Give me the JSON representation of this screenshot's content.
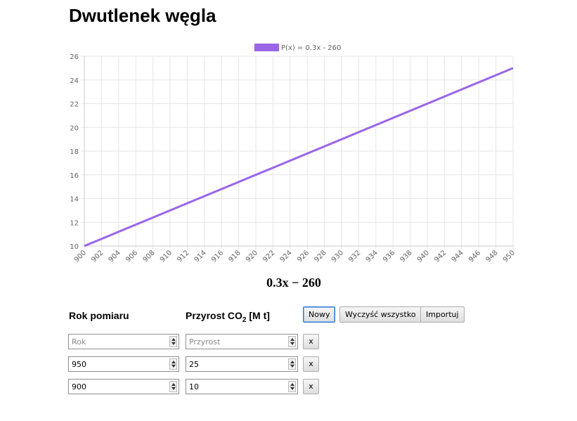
{
  "page": {
    "title": "Dwutlenek węgla"
  },
  "chart_data": {
    "type": "line",
    "legend": "top",
    "grid": true,
    "x": [
      900,
      902,
      904,
      906,
      908,
      910,
      912,
      914,
      916,
      918,
      920,
      922,
      924,
      926,
      928,
      930,
      932,
      934,
      936,
      938,
      940,
      942,
      944,
      946,
      948,
      950
    ],
    "xticks": [
      "900",
      "902",
      "904",
      "906",
      "908",
      "910",
      "912",
      "914",
      "916",
      "918",
      "920",
      "922",
      "924",
      "926",
      "928",
      "930",
      "932",
      "934",
      "936",
      "938",
      "940",
      "942",
      "944",
      "946",
      "948",
      "950"
    ],
    "yticks": [
      "10",
      "12",
      "14",
      "16",
      "18",
      "20",
      "22",
      "24",
      "26"
    ],
    "xlim": [
      900,
      950
    ],
    "ylim": [
      10,
      26
    ],
    "series": [
      {
        "name": "P(x) = 0.3x - 260",
        "color": "#9966e8",
        "points": [
          [
            900,
            10
          ],
          [
            950,
            25
          ]
        ]
      }
    ]
  },
  "formula": "0.3x − 260",
  "table": {
    "col_year": "Rok pomiaru",
    "col_growth_prefix": "Przyrost CO",
    "col_growth_sub": "2",
    "col_growth_suffix": " [M t]",
    "year_placeholder": "Rok",
    "growth_placeholder": "Przyrost",
    "rows": [
      {
        "year": "",
        "growth": ""
      },
      {
        "year": "950",
        "growth": "25"
      },
      {
        "year": "900",
        "growth": "10"
      }
    ]
  },
  "buttons": {
    "new": "Nowy",
    "clear": "Wyczyść wszystko",
    "import": "Importuj",
    "delete": "x"
  }
}
